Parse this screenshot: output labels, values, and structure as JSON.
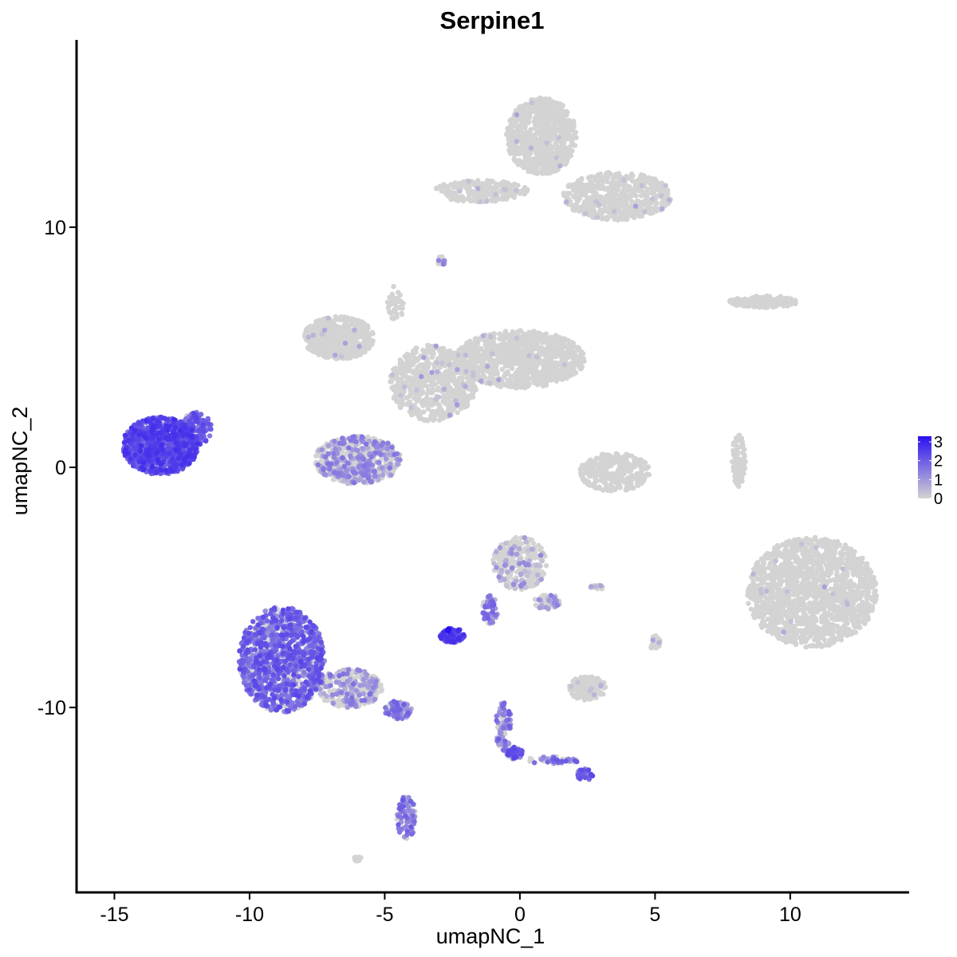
{
  "chart_data": {
    "type": "scatter",
    "title": "Serpine1",
    "xlabel": "umapNC_1",
    "ylabel": "umapNC_2",
    "xlim": [
      -16.4,
      14.4
    ],
    "ylim": [
      -17.7,
      17.8
    ],
    "x_ticks": [
      -15,
      -10,
      -5,
      0,
      5,
      10
    ],
    "x_tick_labels": [
      "-15",
      "-10",
      "-5",
      "0",
      "5",
      "10"
    ],
    "y_ticks": [
      -10,
      0,
      10
    ],
    "y_tick_labels": [
      "-10",
      "0",
      "10"
    ],
    "grid": false,
    "legend": {
      "position": "right",
      "min": 0,
      "max": 3.3,
      "ticks": [
        0,
        1,
        2,
        3
      ],
      "tick_labels": [
        "0",
        "1",
        "2",
        "3"
      ],
      "low_color": "#d3d3d3",
      "high_color": "#2b10f0"
    },
    "clusters": [
      {
        "cx": -13.3,
        "cy": 0.9,
        "rx": 1.4,
        "ry": 1.2,
        "n": 900,
        "expr": 2.1,
        "pos_frac": 0.95,
        "seed": 11
      },
      {
        "cx": -12.0,
        "cy": 1.6,
        "rx": 0.6,
        "ry": 0.7,
        "n": 140,
        "expr": 1.8,
        "pos_frac": 0.85,
        "seed": 12
      },
      {
        "cx": -8.8,
        "cy": -8.0,
        "rx": 1.6,
        "ry": 2.2,
        "n": 1100,
        "expr": 1.7,
        "pos_frac": 0.75,
        "seed": 13
      },
      {
        "cx": -6.3,
        "cy": -9.2,
        "rx": 1.2,
        "ry": 0.8,
        "n": 300,
        "expr": 1.0,
        "pos_frac": 0.4,
        "seed": 14
      },
      {
        "cx": -4.5,
        "cy": -10.1,
        "rx": 0.5,
        "ry": 0.4,
        "n": 90,
        "expr": 1.3,
        "pos_frac": 0.6,
        "seed": 15
      },
      {
        "cx": -4.2,
        "cy": -14.6,
        "rx": 0.35,
        "ry": 0.9,
        "n": 90,
        "expr": 1.4,
        "pos_frac": 0.6,
        "seed": 16
      },
      {
        "cx": -6.0,
        "cy": 0.3,
        "rx": 1.6,
        "ry": 1.0,
        "n": 600,
        "expr": 0.9,
        "pos_frac": 0.45,
        "seed": 17
      },
      {
        "cx": -6.7,
        "cy": 5.4,
        "rx": 1.3,
        "ry": 0.9,
        "n": 500,
        "expr": 0.2,
        "pos_frac": 0.02,
        "seed": 18
      },
      {
        "cx": -3.2,
        "cy": 3.5,
        "rx": 1.6,
        "ry": 1.6,
        "n": 600,
        "expr": 0.3,
        "pos_frac": 0.05,
        "seed": 19
      },
      {
        "cx": 0.0,
        "cy": 4.5,
        "rx": 2.4,
        "ry": 1.2,
        "n": 1000,
        "expr": 0.2,
        "pos_frac": 0.01,
        "seed": 20
      },
      {
        "cx": 0.8,
        "cy": 13.8,
        "rx": 1.3,
        "ry": 1.6,
        "n": 800,
        "expr": 0.2,
        "pos_frac": 0.01,
        "seed": 21
      },
      {
        "cx": 3.6,
        "cy": 11.3,
        "rx": 2.0,
        "ry": 1.0,
        "n": 600,
        "expr": 0.2,
        "pos_frac": 0.02,
        "seed": 22
      },
      {
        "cx": -1.5,
        "cy": 11.5,
        "rx": 1.8,
        "ry": 0.45,
        "n": 250,
        "expr": 0.2,
        "pos_frac": 0.03,
        "seed": 23
      },
      {
        "cx": 9.0,
        "cy": 6.9,
        "rx": 1.3,
        "ry": 0.25,
        "n": 150,
        "expr": 0.2,
        "pos_frac": 0.0,
        "seed": 24
      },
      {
        "cx": 3.5,
        "cy": -0.2,
        "rx": 1.3,
        "ry": 0.8,
        "n": 300,
        "expr": 0.2,
        "pos_frac": 0.0,
        "seed": 25
      },
      {
        "cx": 8.1,
        "cy": 0.3,
        "rx": 0.25,
        "ry": 1.1,
        "n": 100,
        "expr": 0.2,
        "pos_frac": 0.0,
        "seed": 26
      },
      {
        "cx": 10.8,
        "cy": -5.2,
        "rx": 2.4,
        "ry": 2.3,
        "n": 1500,
        "expr": 0.2,
        "pos_frac": 0.01,
        "seed": 27
      },
      {
        "cx": 0.0,
        "cy": -4.0,
        "rx": 1.0,
        "ry": 1.1,
        "n": 300,
        "expr": 0.6,
        "pos_frac": 0.25,
        "seed": 28
      },
      {
        "cx": -1.1,
        "cy": -5.9,
        "rx": 0.3,
        "ry": 0.6,
        "n": 60,
        "expr": 1.3,
        "pos_frac": 0.7,
        "seed": 29
      },
      {
        "cx": -2.5,
        "cy": -7.0,
        "rx": 0.45,
        "ry": 0.3,
        "n": 120,
        "expr": 2.2,
        "pos_frac": 0.85,
        "seed": 30
      },
      {
        "cx": 2.5,
        "cy": -9.2,
        "rx": 0.7,
        "ry": 0.5,
        "n": 160,
        "expr": 0.3,
        "pos_frac": 0.05,
        "seed": 31
      },
      {
        "cx": -0.6,
        "cy": -10.8,
        "rx": 0.3,
        "ry": 1.0,
        "n": 80,
        "expr": 1.3,
        "pos_frac": 0.6,
        "seed": 32
      },
      {
        "cx": -0.2,
        "cy": -11.9,
        "rx": 0.3,
        "ry": 0.25,
        "n": 60,
        "expr": 1.8,
        "pos_frac": 0.8,
        "seed": 33
      },
      {
        "cx": 1.2,
        "cy": -12.2,
        "rx": 1.0,
        "ry": 0.15,
        "n": 50,
        "expr": 1.4,
        "pos_frac": 0.6,
        "seed": 34
      },
      {
        "cx": 2.4,
        "cy": -12.8,
        "rx": 0.3,
        "ry": 0.25,
        "n": 50,
        "expr": 1.7,
        "pos_frac": 0.7,
        "seed": 35
      },
      {
        "cx": 1.0,
        "cy": -5.6,
        "rx": 0.5,
        "ry": 0.3,
        "n": 60,
        "expr": 0.8,
        "pos_frac": 0.4,
        "seed": 36
      },
      {
        "cx": 5.0,
        "cy": -7.3,
        "rx": 0.2,
        "ry": 0.3,
        "n": 30,
        "expr": 0.2,
        "pos_frac": 0.05,
        "seed": 37
      },
      {
        "cx": -2.9,
        "cy": 8.6,
        "rx": 0.15,
        "ry": 0.2,
        "n": 15,
        "expr": 1.0,
        "pos_frac": 0.4,
        "seed": 38
      },
      {
        "cx": -4.6,
        "cy": 6.8,
        "rx": 0.3,
        "ry": 0.8,
        "n": 40,
        "expr": 0.2,
        "pos_frac": 0.0,
        "seed": 39
      },
      {
        "cx": -6.0,
        "cy": -16.3,
        "rx": 0.15,
        "ry": 0.1,
        "n": 12,
        "expr": 0.2,
        "pos_frac": 0.0,
        "seed": 40
      },
      {
        "cx": 2.9,
        "cy": -5.0,
        "rx": 0.3,
        "ry": 0.1,
        "n": 15,
        "expr": 0.5,
        "pos_frac": 0.2,
        "seed": 41
      },
      {
        "cx": -2.6,
        "cy": -6.8,
        "rx": 0.1,
        "ry": 0.1,
        "n": 4,
        "expr": 3.3,
        "pos_frac": 1.0,
        "seed": 42
      }
    ]
  }
}
